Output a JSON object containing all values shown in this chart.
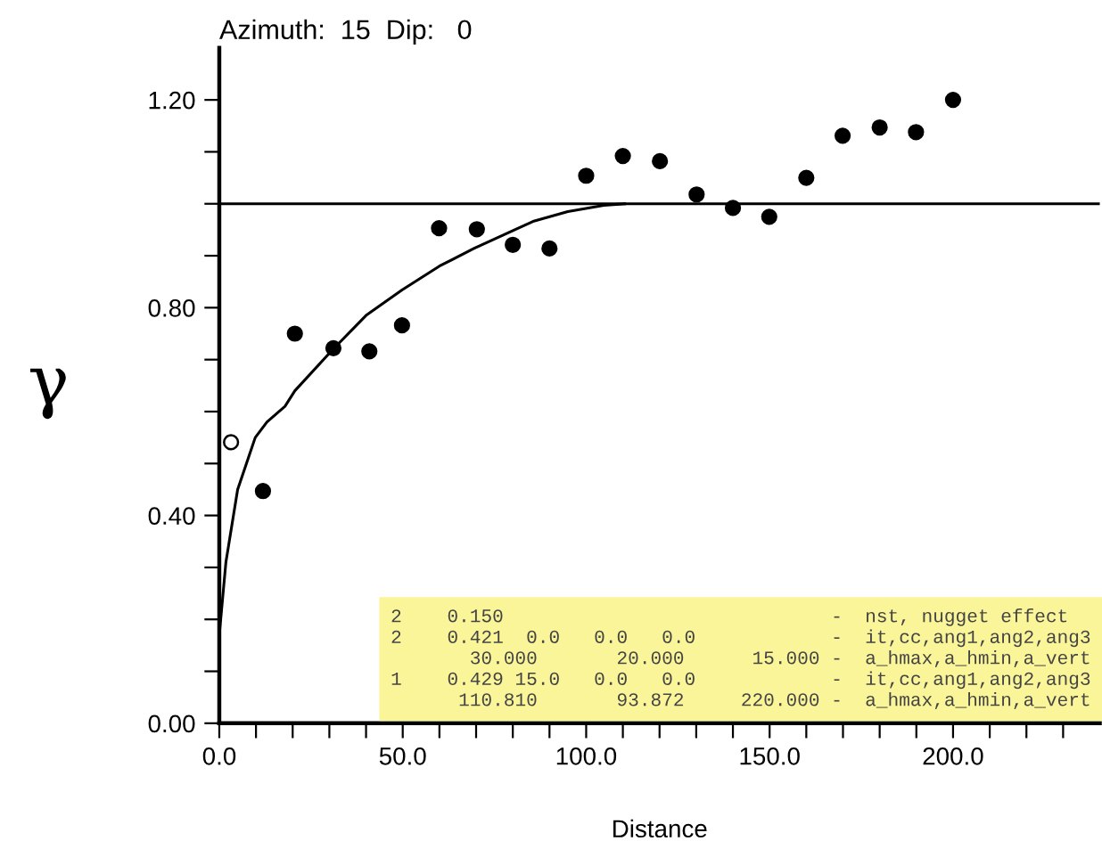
{
  "chart_data": {
    "type": "scatter",
    "title": "Azimuth:  15  Dip:   0",
    "xlabel": "Distance",
    "ylabel": "γ",
    "series": [
      {
        "color": "#000000",
        "marker": "circle",
        "x": [
          11.9,
          20.6,
          31.1,
          40.9,
          49.8,
          59.9,
          70.2,
          80.0,
          90.0,
          100.0,
          110.0,
          120.1,
          130.1,
          140.0,
          149.9,
          160.0,
          169.9,
          180.0,
          189.9,
          200.0
        ],
        "values": [
          0.447,
          0.75,
          0.722,
          0.716,
          0.766,
          0.953,
          0.951,
          0.921,
          0.914,
          1.054,
          1.092,
          1.082,
          1.018,
          0.992,
          0.975,
          1.05,
          1.131,
          1.147,
          1.138,
          1.2
        ]
      },
      {
        "color": "#ffffff",
        "marker": "circle",
        "x": [
          3.2
        ],
        "values": [
          0.541
        ]
      },
      {
        "type": "line",
        "color": "#000000",
        "marker": "none",
        "x": [
          0,
          1.8,
          5,
          9.8,
          13,
          17.9,
          20.6,
          31,
          40,
          49.8,
          60,
          69.4,
          85.5,
          95,
          104.8,
          110.5
        ],
        "values": [
          0.17,
          0.31,
          0.45,
          0.55,
          0.58,
          0.61,
          0.64,
          0.72,
          0.785,
          0.834,
          0.88,
          0.914,
          0.966,
          0.985,
          0.997,
          1.0
        ]
      }
    ],
    "ref_lines": [
      {
        "axis": "y",
        "value": 1.0,
        "color": "#000000"
      }
    ],
    "xlim": [
      0,
      240
    ],
    "ylim": [
      0,
      1.3
    ],
    "xticks": [
      {
        "value": 0,
        "label": "0.0"
      },
      {
        "value": 10,
        "label": null
      },
      {
        "value": 20,
        "label": null
      },
      {
        "value": 30,
        "label": null
      },
      {
        "value": 40,
        "label": null
      },
      {
        "value": 50,
        "label": "50.0"
      },
      {
        "value": 60,
        "label": null
      },
      {
        "value": 70,
        "label": null
      },
      {
        "value": 80,
        "label": null
      },
      {
        "value": 90,
        "label": null
      },
      {
        "value": 100,
        "label": "100.0"
      },
      {
        "value": 110,
        "label": null
      },
      {
        "value": 120,
        "label": null
      },
      {
        "value": 130,
        "label": null
      },
      {
        "value": 140,
        "label": null
      },
      {
        "value": 150,
        "label": "150.0"
      },
      {
        "value": 160,
        "label": null
      },
      {
        "value": 170,
        "label": null
      },
      {
        "value": 180,
        "label": null
      },
      {
        "value": 190,
        "label": null
      },
      {
        "value": 200,
        "label": "200.0"
      },
      {
        "value": 210,
        "label": null
      },
      {
        "value": 220,
        "label": null
      },
      {
        "value": 230,
        "label": null
      }
    ],
    "yticks": [
      {
        "value": 0,
        "label": "0.00"
      },
      {
        "value": 0.1,
        "label": null
      },
      {
        "value": 0.2,
        "label": null
      },
      {
        "value": 0.3,
        "label": null
      },
      {
        "value": 0.4,
        "label": "0.40"
      },
      {
        "value": 0.5,
        "label": null
      },
      {
        "value": 0.6,
        "label": null
      },
      {
        "value": 0.7,
        "label": null
      },
      {
        "value": 0.8,
        "label": "0.80"
      },
      {
        "value": 0.9,
        "label": null
      },
      {
        "value": 1.0,
        "label": null
      },
      {
        "value": 1.1,
        "label": null
      },
      {
        "value": 1.2,
        "label": "1.20"
      }
    ],
    "grid": false,
    "annotations": [
      "2    0.150                             -  nst, nugget effect",
      "2    0.421  0.0   0.0   0.0            -  it,cc,ang1,ang2,ang3",
      "       30.000       20.000      15.000 -  a_hmax,a_hmin,a_vert",
      "1    0.429 15.0   0.0   0.0            -  it,cc,ang1,ang2,ang3",
      "      110.810       93.872     220.000 -  a_hmax,a_hmin,a_vert"
    ]
  }
}
